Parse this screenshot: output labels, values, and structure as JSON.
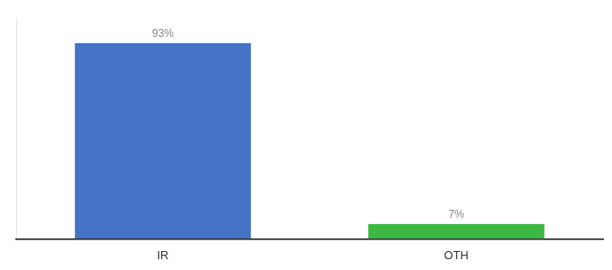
{
  "chart_data": {
    "type": "bar",
    "categories": [
      "IR",
      "OTH"
    ],
    "values": [
      93,
      7
    ],
    "value_labels": [
      "93%",
      "7%"
    ],
    "colors": [
      "#4472c4",
      "#3cb843"
    ],
    "ylim": [
      0,
      105
    ],
    "data_labels": true,
    "tick_labels": "x",
    "grid": false
  }
}
